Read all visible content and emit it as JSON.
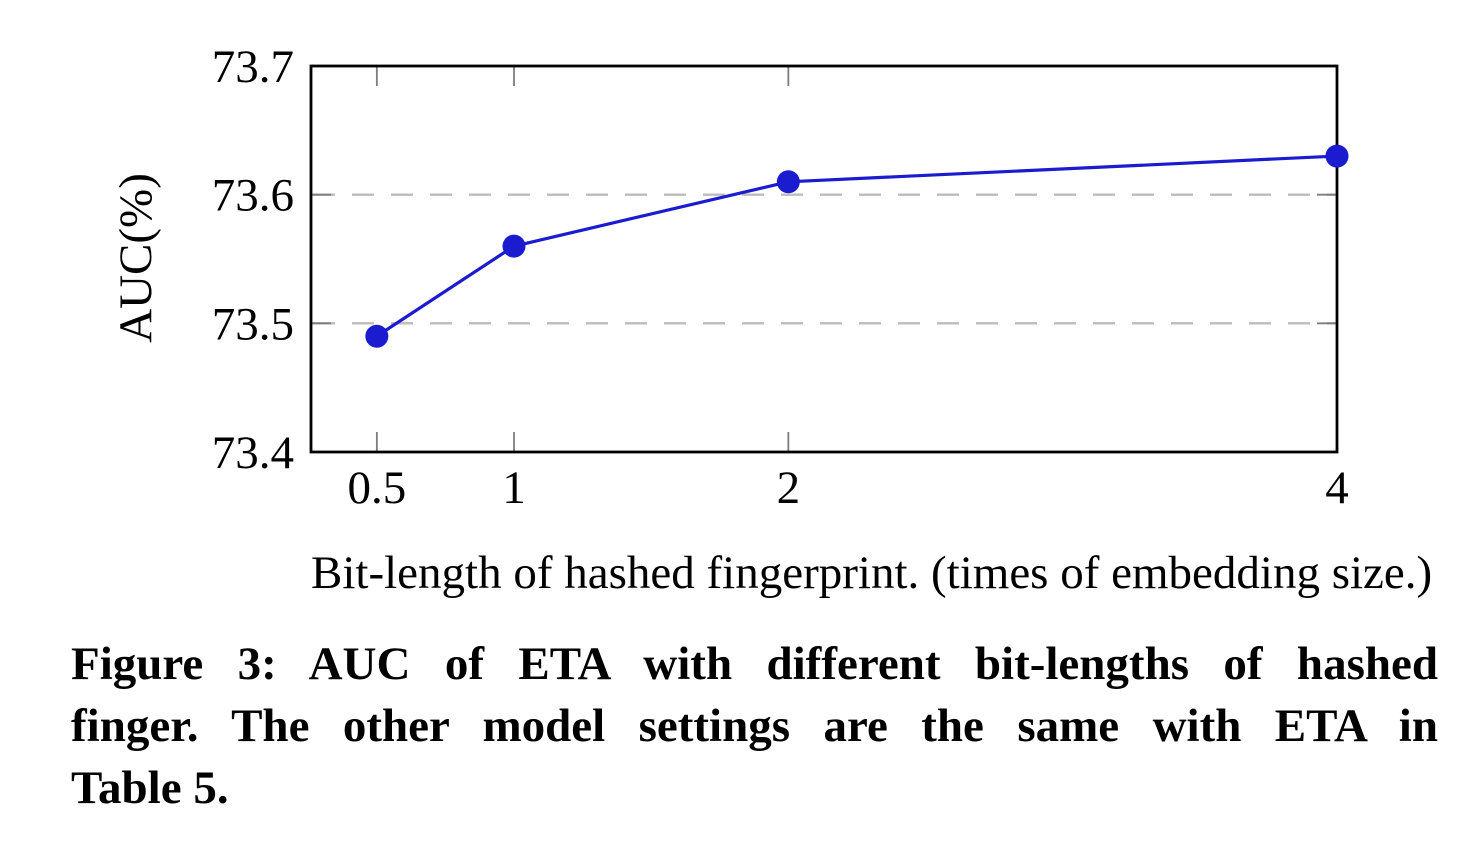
{
  "figure": {
    "caption_lines": [
      "Figure 3: AUC of ETA with different bit-lengths of hashed",
      "finger. The other model settings are the same with ETA in",
      "Table 5."
    ]
  },
  "chart_data": {
    "type": "line",
    "title": "",
    "xlabel": "Bit-length of hashed fingerprint. (times of embedding size.)",
    "ylabel": "AUC(%)",
    "x": [
      0.5,
      1,
      2,
      4
    ],
    "values": [
      73.49,
      73.56,
      73.61,
      73.63
    ],
    "xlim": [
      0.26,
      4
    ],
    "ylim": [
      73.4,
      73.7
    ],
    "xticks": {
      "values": [
        0.5,
        1,
        2,
        4
      ],
      "labels": [
        "0.5",
        "1",
        "2",
        "4"
      ]
    },
    "yticks": {
      "values": [
        73.4,
        73.5,
        73.6,
        73.7
      ],
      "labels": [
        "73.4",
        "73.5",
        "73.6",
        "73.7"
      ]
    },
    "grid_y": [
      73.5,
      73.6
    ],
    "grid_style": "dashed",
    "legend": "none",
    "colors": {
      "line": "#1b1bd0",
      "marker": "#1b1bd0",
      "grid": "#bcbcbc",
      "axis": "#000000",
      "tick": "#7d7d7d"
    }
  }
}
